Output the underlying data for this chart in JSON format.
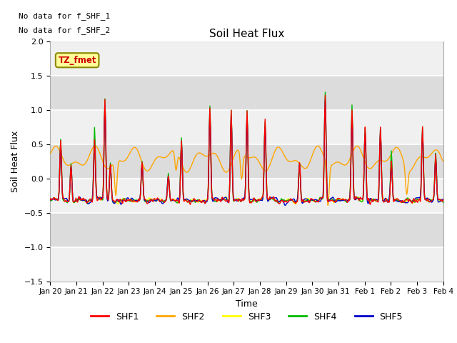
{
  "title": "Soil Heat Flux",
  "xlabel": "Time",
  "ylabel": "Soil Heat Flux",
  "ylim": [
    -1.5,
    2.0
  ],
  "yticks": [
    -1.5,
    -1.0,
    -0.5,
    0.0,
    0.5,
    1.0,
    1.5,
    2.0
  ],
  "colors": {
    "SHF1": "#ff0000",
    "SHF2": "#ffa500",
    "SHF3": "#ffff00",
    "SHF4": "#00bb00",
    "SHF5": "#0000cc"
  },
  "legend_labels": [
    "SHF1",
    "SHF2",
    "SHF3",
    "SHF4",
    "SHF5"
  ],
  "text_annotations": [
    "No data for f_SHF_1",
    "No data for f_SHF_2"
  ],
  "tz_label": "TZ_fmet",
  "background_color": "#ffffff",
  "plot_bg_light": "#f0f0f0",
  "plot_bg_dark": "#dcdcdc",
  "grid_color": "#ffffff",
  "n_points": 720,
  "xtick_labels": [
    "Jan 20",
    "Jan 21",
    "Jan 22",
    "Jan 23",
    "Jan 24",
    "Jan 25",
    "Jan 26",
    "Jan 27",
    "Jan 28",
    "Jan 29",
    "Jan 30",
    "Jan 31",
    "Feb 1",
    "Feb 2",
    "Feb 3",
    "Feb 4"
  ],
  "linewidth": 1.0
}
